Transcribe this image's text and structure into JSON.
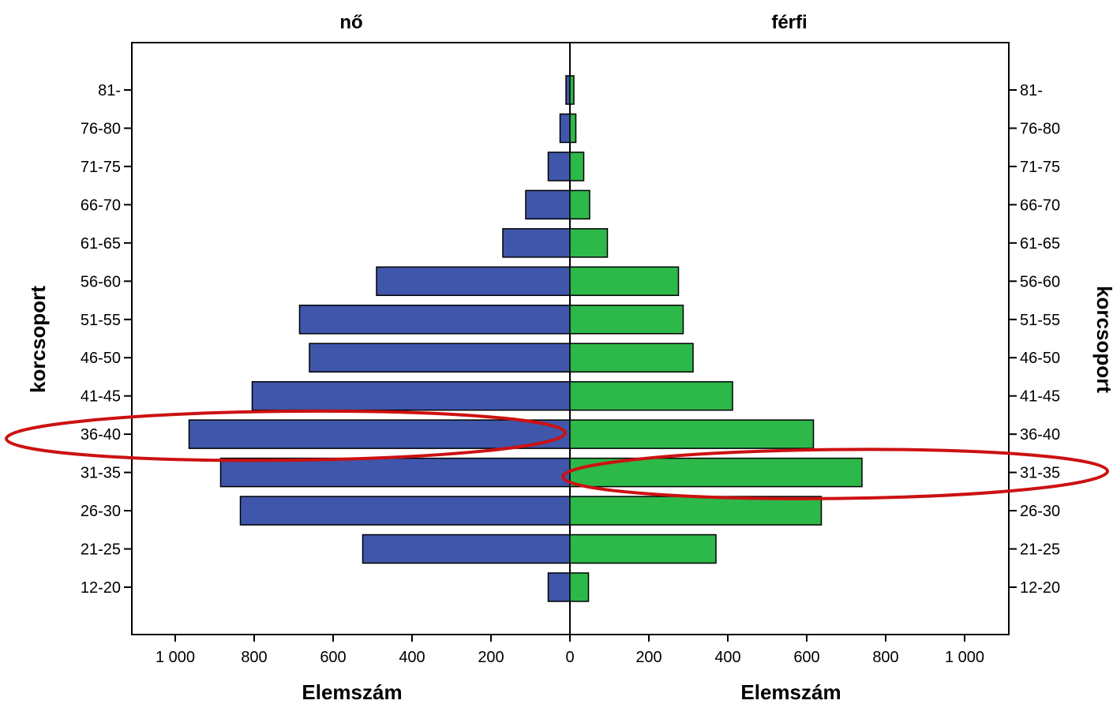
{
  "chart_data": {
    "type": "bar",
    "orientation": "horizontal-population-pyramid",
    "panels": [
      {
        "title": "nő",
        "side": "left"
      },
      {
        "title": "férfi",
        "side": "right"
      }
    ],
    "categories": [
      "81-",
      "76-80",
      "71-75",
      "66-70",
      "61-65",
      "56-60",
      "51-55",
      "46-50",
      "41-45",
      "36-40",
      "31-35",
      "26-30",
      "21-25",
      "12-20"
    ],
    "series": [
      {
        "name": "nő",
        "color": "#3f56aa",
        "values": [
          10,
          25,
          55,
          112,
          170,
          490,
          685,
          660,
          805,
          965,
          885,
          835,
          525,
          55
        ]
      },
      {
        "name": "férfi",
        "color": "#2db84a",
        "values": [
          10,
          15,
          35,
          50,
          95,
          275,
          287,
          312,
          412,
          617,
          740,
          637,
          370,
          47
        ]
      }
    ],
    "xlim": [
      0,
      1100
    ],
    "xticks": [
      1000,
      800,
      600,
      400,
      200,
      0,
      200,
      400,
      600,
      800,
      1000
    ],
    "xtick_labels": [
      "1 000",
      "800",
      "600",
      "400",
      "200",
      "0",
      "200",
      "400",
      "600",
      "800",
      "1 000"
    ],
    "xlabel": "Elemszám",
    "ylabel": "korcsoport",
    "grid": false,
    "legend": "none",
    "highlight_color": "#cc1111",
    "highlights": [
      {
        "series": "nő",
        "category": "36-40"
      },
      {
        "series": "férfi",
        "category": "31-35"
      }
    ]
  }
}
